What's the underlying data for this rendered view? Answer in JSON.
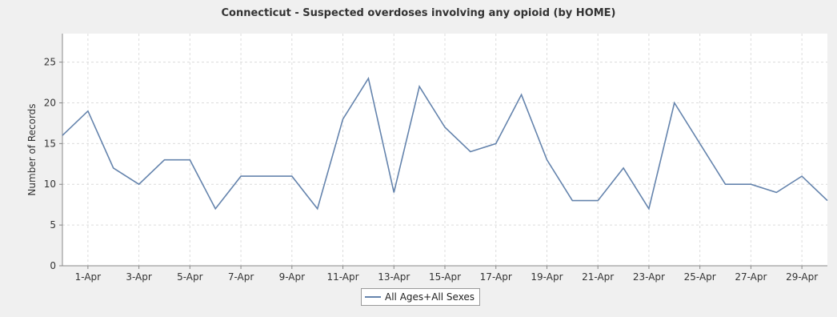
{
  "chart_data": {
    "type": "line",
    "title": "Connecticut - Suspected overdoses involving any opioid (by HOME)",
    "xlabel": "",
    "ylabel": "Number of Records",
    "ylim": [
      0,
      28.5
    ],
    "yticks": [
      0,
      5,
      10,
      15,
      20,
      25
    ],
    "x_tick_labels": [
      "1-Apr",
      "3-Apr",
      "5-Apr",
      "7-Apr",
      "9-Apr",
      "11-Apr",
      "13-Apr",
      "15-Apr",
      "17-Apr",
      "19-Apr",
      "21-Apr",
      "23-Apr",
      "25-Apr",
      "27-Apr",
      "29-Apr"
    ],
    "x": [
      "31-Mar",
      "1-Apr",
      "2-Apr",
      "3-Apr",
      "4-Apr",
      "5-Apr",
      "6-Apr",
      "7-Apr",
      "8-Apr",
      "9-Apr",
      "10-Apr",
      "11-Apr",
      "12-Apr",
      "13-Apr",
      "14-Apr",
      "15-Apr",
      "16-Apr",
      "17-Apr",
      "18-Apr",
      "19-Apr",
      "20-Apr",
      "21-Apr",
      "22-Apr",
      "23-Apr",
      "24-Apr",
      "25-Apr",
      "26-Apr",
      "27-Apr",
      "28-Apr",
      "29-Apr",
      "30-Apr"
    ],
    "series": [
      {
        "name": "All Ages+All Sexes",
        "color": "#6584ad",
        "values": [
          16,
          19,
          12,
          10,
          13,
          13,
          7,
          11,
          11,
          11,
          7,
          18,
          23,
          9,
          22,
          17,
          14,
          15,
          21,
          13,
          8,
          8,
          12,
          7,
          20,
          15,
          10,
          10,
          9,
          11,
          8
        ]
      }
    ],
    "grid": true,
    "legend_position": "bottom"
  }
}
